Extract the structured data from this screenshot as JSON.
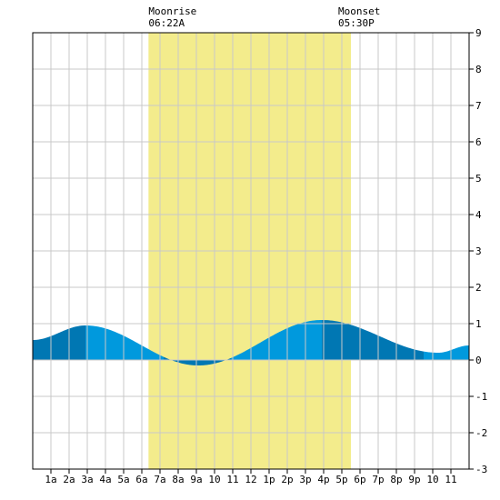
{
  "chart_data": {
    "type": "area",
    "title": "",
    "xlabel": "",
    "ylabel": "",
    "x_range_hours": [
      0,
      24
    ],
    "ylim": [
      -3,
      9
    ],
    "y_ticks": [
      9,
      8,
      7,
      6,
      5,
      4,
      3,
      2,
      1,
      0,
      -1,
      -2,
      -3
    ],
    "x_tick_labels": [
      "1a",
      "2a",
      "3a",
      "4a",
      "5a",
      "6a",
      "7a",
      "8a",
      "9a",
      "10",
      "11",
      "12",
      "1p",
      "2p",
      "3p",
      "4p",
      "5p",
      "6p",
      "7p",
      "8p",
      "9p",
      "10",
      "11"
    ],
    "grid": true,
    "moon_window": {
      "start_hour": 6.367,
      "end_hour": 17.5,
      "moonrise_label": "Moonrise",
      "moonrise_time": "06:22A",
      "moonset_label": "Moonset",
      "moonset_time": "05:30P"
    },
    "tide_extrema": [
      {
        "hour": 0.0,
        "value": 0.55
      },
      {
        "hour": 2.9,
        "value": 0.95
      },
      {
        "hour": 9.1,
        "value": -0.15
      },
      {
        "hour": 15.9,
        "value": 1.1
      },
      {
        "hour": 22.3,
        "value": 0.2
      },
      {
        "hour": 24.0,
        "value": 0.4
      }
    ],
    "shade_breaks_hours": [
      2.9,
      7.2,
      10.9,
      15.9,
      21.5
    ],
    "colors": {
      "moon_band": "#f3ec8c",
      "tide_light": "#0099dd",
      "tide_dark": "#0077b3",
      "grid": "#c8c8c8",
      "frame": "#000000",
      "background": "#ffffff"
    }
  }
}
